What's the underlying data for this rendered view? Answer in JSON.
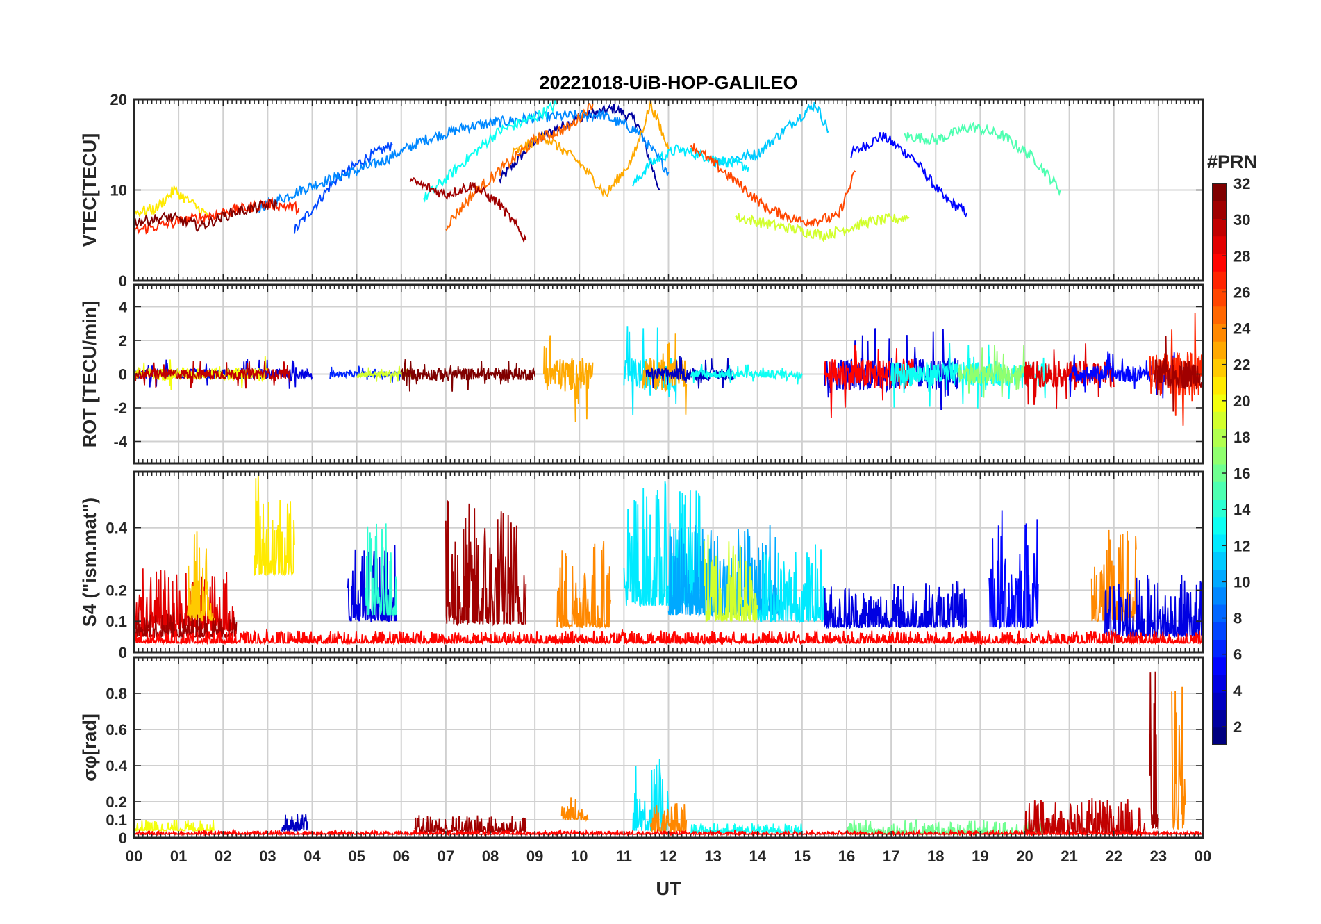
{
  "title": "20221018-UiB-HOP-GALILEO",
  "chart_data": {
    "type": "line",
    "title": "20221018-UiB-HOP-GALILEO",
    "xlabel": "UT",
    "x_ticks": [
      "00",
      "01",
      "02",
      "03",
      "04",
      "05",
      "06",
      "07",
      "08",
      "09",
      "10",
      "11",
      "12",
      "13",
      "14",
      "15",
      "16",
      "17",
      "18",
      "19",
      "20",
      "21",
      "22",
      "23",
      "00"
    ],
    "xlim_hours": [
      0,
      24
    ],
    "grid": true,
    "colormap": "jet",
    "colorbar": {
      "title": "#PRN",
      "range": [
        1,
        32
      ],
      "ticks": [
        "2",
        "4",
        "6",
        "8",
        "10",
        "12",
        "14",
        "16",
        "18",
        "20",
        "22",
        "24",
        "26",
        "28",
        "30",
        "32"
      ],
      "placement": "right"
    },
    "panels": [
      {
        "id": "vtec",
        "ylabel": "VTEC[TECU]",
        "ylim": [
          0,
          20
        ],
        "y_ticks": [
          "0",
          "10",
          "20"
        ],
        "series": [
          {
            "prn": 2,
            "x": [
              8.2,
              9.0,
              10.0,
              10.8,
              11.3,
              11.8
            ],
            "y": [
              11.0,
              15.5,
              18.0,
              19.0,
              17.5,
              10.0
            ]
          },
          {
            "prn": 5,
            "x": [
              16.1,
              16.8,
              17.5,
              18.2,
              18.7
            ],
            "y": [
              14.0,
              16.0,
              13.5,
              9.0,
              7.5
            ]
          },
          {
            "prn": 7,
            "x": [
              3.6,
              4.5,
              5.2,
              5.8
            ],
            "y": [
              5.5,
              11.0,
              13.5,
              15.0
            ]
          },
          {
            "prn": 9,
            "x": [
              2.8,
              4.0,
              5.5,
              6.5,
              7.5,
              9.0,
              10.5,
              11.3,
              12.0
            ],
            "y": [
              8.0,
              10.5,
              13.0,
              15.5,
              17.0,
              18.0,
              18.3,
              16.5,
              12.0
            ]
          },
          {
            "prn": 11,
            "x": [
              13.0,
              14.0,
              14.8,
              15.3,
              15.6
            ],
            "y": [
              13.0,
              14.0,
              17.5,
              19.5,
              16.5
            ]
          },
          {
            "prn": 12,
            "x": [
              11.2,
              11.6,
              12.2,
              13.0,
              13.8
            ],
            "y": [
              10.5,
              13.0,
              14.5,
              13.5,
              12.5
            ]
          },
          {
            "prn": 13,
            "x": [
              6.5,
              7.5,
              8.2,
              9.0,
              9.5
            ],
            "y": [
              9.0,
              13.5,
              16.5,
              18.0,
              19.5
            ]
          },
          {
            "prn": 15,
            "x": [
              17.3,
              18.0,
              18.8,
              19.5,
              20.2,
              20.8
            ],
            "y": [
              16.0,
              15.5,
              17.0,
              16.0,
              13.5,
              10.0
            ]
          },
          {
            "prn": 19,
            "x": [
              13.5,
              14.5,
              15.5,
              16.5,
              17.4
            ],
            "y": [
              7.0,
              6.0,
              5.0,
              6.5,
              7.0
            ]
          },
          {
            "prn": 21,
            "x": [
              0.0,
              0.5,
              0.9,
              1.3,
              1.7
            ],
            "y": [
              7.5,
              8.0,
              10.0,
              8.5,
              7.0
            ]
          },
          {
            "prn": 23,
            "x": [
              8.5,
              9.2,
              10.0,
              10.6,
              11.2,
              11.6,
              12.0
            ],
            "y": [
              14.0,
              16.0,
              13.0,
              9.5,
              13.5,
              19.5,
              14.5
            ]
          },
          {
            "prn": 25,
            "x": [
              7.0,
              7.6,
              8.3,
              9.0,
              9.8,
              10.3
            ],
            "y": [
              6.0,
              9.5,
              12.5,
              15.5,
              17.0,
              19.5
            ]
          },
          {
            "prn": 26,
            "x": [
              12.5,
              13.5,
              14.2,
              15.0,
              15.8,
              16.2
            ],
            "y": [
              15.0,
              11.0,
              8.0,
              6.5,
              7.0,
              12.0
            ]
          },
          {
            "prn": 27,
            "x": [
              0.0,
              1.0,
              2.0,
              3.0,
              3.7
            ],
            "y": [
              5.5,
              6.5,
              7.5,
              8.5,
              8.0
            ]
          },
          {
            "prn": 31,
            "x": [
              6.2,
              7.0,
              7.6,
              8.2,
              8.8
            ],
            "y": [
              11.0,
              9.5,
              10.5,
              8.5,
              4.5
            ]
          },
          {
            "prn": 32,
            "x": [
              0.0,
              0.8,
              1.5,
              2.2,
              3.2
            ],
            "y": [
              6.5,
              7.0,
              6.0,
              7.5,
              8.5
            ]
          }
        ]
      },
      {
        "id": "rot",
        "ylabel": "ROT [TECU/min]",
        "ylim": [
          -5.3,
          5.3
        ],
        "y_ticks": [
          "-4",
          "-2",
          "0",
          "2",
          "4"
        ],
        "noise_segments": [
          {
            "prn": 4,
            "x": [
              0.0,
              4.0
            ],
            "amp": 0.5
          },
          {
            "prn": 20,
            "x": [
              0.0,
              3.0
            ],
            "amp": 0.6
          },
          {
            "prn": 30,
            "x": [
              0.0,
              3.5
            ],
            "amp": 0.5
          },
          {
            "prn": 6,
            "x": [
              4.4,
              6.0
            ],
            "amp": 0.3
          },
          {
            "prn": 19,
            "x": [
              5.0,
              6.3
            ],
            "amp": 0.3
          },
          {
            "prn": 32,
            "x": [
              6.0,
              9.0
            ],
            "amp": 0.6
          },
          {
            "prn": 23,
            "x": [
              9.2,
              10.3
            ],
            "amp": 1.6
          },
          {
            "prn": 12,
            "x": [
              11.0,
              12.2
            ],
            "amp": 1.6
          },
          {
            "prn": 23,
            "x": [
              11.4,
              12.4
            ],
            "amp": 1.6
          },
          {
            "prn": 3,
            "x": [
              11.5,
              13.5
            ],
            "amp": 0.6
          },
          {
            "prn": 13,
            "x": [
              12.5,
              15.0
            ],
            "amp": 0.4
          },
          {
            "prn": 4,
            "x": [
              15.5,
              18.5
            ],
            "amp": 1.6
          },
          {
            "prn": 28,
            "x": [
              15.5,
              17.5
            ],
            "amp": 1.5
          },
          {
            "prn": 13,
            "x": [
              17.0,
              20.5
            ],
            "amp": 1.2
          },
          {
            "prn": 17,
            "x": [
              18.5,
              20.0
            ],
            "amp": 1.0
          },
          {
            "prn": 29,
            "x": [
              20.0,
              22.0
            ],
            "amp": 1.3
          },
          {
            "prn": 5,
            "x": [
              21.0,
              24.0
            ],
            "amp": 0.8
          },
          {
            "prn": 27,
            "x": [
              22.8,
              24.0
            ],
            "amp": 2.2
          },
          {
            "prn": 31,
            "x": [
              22.9,
              24.0
            ],
            "amp": 1.5
          }
        ]
      },
      {
        "id": "s4",
        "ylabel": "S4 (\"ism.mat\")",
        "ylim": [
          0,
          0.58
        ],
        "y_ticks": [
          "0",
          "0.1",
          "0.2",
          "0.4"
        ],
        "noise_segments": [
          {
            "prn": 29,
            "x": [
              0.0,
              2.3
            ],
            "base": 0.07,
            "amp": 0.2
          },
          {
            "prn": 22,
            "x": [
              1.2,
              1.8
            ],
            "base": 0.1,
            "amp": 0.3
          },
          {
            "prn": 21,
            "x": [
              2.7,
              3.6
            ],
            "base": 0.25,
            "amp": 0.33
          },
          {
            "prn": 31,
            "x": [
              0.0,
              2.3
            ],
            "base": 0.05,
            "amp": 0.08
          },
          {
            "prn": 4,
            "x": [
              4.8,
              5.9
            ],
            "base": 0.1,
            "amp": 0.25
          },
          {
            "prn": 14,
            "x": [
              5.2,
              5.9
            ],
            "base": 0.12,
            "amp": 0.3
          },
          {
            "prn": 31,
            "x": [
              7.0,
              8.8
            ],
            "base": 0.09,
            "amp": 0.4
          },
          {
            "prn": 24,
            "x": [
              9.5,
              10.7
            ],
            "base": 0.08,
            "amp": 0.3
          },
          {
            "prn": 12,
            "x": [
              11.0,
              12.8
            ],
            "base": 0.15,
            "amp": 0.4
          },
          {
            "prn": 10,
            "x": [
              12.0,
              14.5
            ],
            "base": 0.12,
            "amp": 0.3
          },
          {
            "prn": 19,
            "x": [
              12.8,
              14.0
            ],
            "base": 0.1,
            "amp": 0.3
          },
          {
            "prn": 12,
            "x": [
              14.0,
              15.5
            ],
            "base": 0.1,
            "amp": 0.25
          },
          {
            "prn": 4,
            "x": [
              15.5,
              18.7
            ],
            "base": 0.08,
            "amp": 0.15
          },
          {
            "prn": 5,
            "x": [
              19.2,
              20.3
            ],
            "base": 0.08,
            "amp": 0.4
          },
          {
            "prn": 24,
            "x": [
              21.5,
              22.5
            ],
            "base": 0.1,
            "amp": 0.3
          },
          {
            "prn": 4,
            "x": [
              21.8,
              24.0
            ],
            "base": 0.05,
            "amp": 0.2
          },
          {
            "prn": 28,
            "x": [
              0.0,
              24.0
            ],
            "base": 0.03,
            "amp": 0.04
          }
        ]
      },
      {
        "id": "sigma_phi",
        "ylabel": "σφ[rad]",
        "ylim": [
          0,
          1.0
        ],
        "y_ticks": [
          "0",
          "0.1",
          "0.2",
          "0.4",
          "0.6",
          "0.8"
        ],
        "noise_segments": [
          {
            "prn": 20,
            "x": [
              0.0,
              1.8
            ],
            "base": 0.04,
            "amp": 0.06
          },
          {
            "prn": 3,
            "x": [
              3.3,
              3.9
            ],
            "base": 0.04,
            "amp": 0.1
          },
          {
            "prn": 31,
            "x": [
              6.3,
              8.8
            ],
            "base": 0.03,
            "amp": 0.1
          },
          {
            "prn": 24,
            "x": [
              9.6,
              10.2
            ],
            "base": 0.1,
            "amp": 0.13
          },
          {
            "prn": 12,
            "x": [
              11.2,
              12.0
            ],
            "base": 0.04,
            "amp": 0.4
          },
          {
            "prn": 24,
            "x": [
              11.6,
              12.4
            ],
            "base": 0.03,
            "amp": 0.18
          },
          {
            "prn": 13,
            "x": [
              12.5,
              15.0
            ],
            "base": 0.03,
            "amp": 0.05
          },
          {
            "prn": 16,
            "x": [
              16.0,
              20.5
            ],
            "base": 0.02,
            "amp": 0.08
          },
          {
            "prn": 30,
            "x": [
              20.0,
              22.7
            ],
            "base": 0.02,
            "amp": 0.2
          },
          {
            "prn": 31,
            "x": [
              22.8,
              23.0
            ],
            "base": 0.05,
            "amp": 0.9
          },
          {
            "prn": 24,
            "x": [
              23.3,
              23.6
            ],
            "base": 0.05,
            "amp": 0.8
          },
          {
            "prn": 28,
            "x": [
              0.0,
              24.0
            ],
            "base": 0.02,
            "amp": 0.02
          }
        ]
      }
    ]
  }
}
